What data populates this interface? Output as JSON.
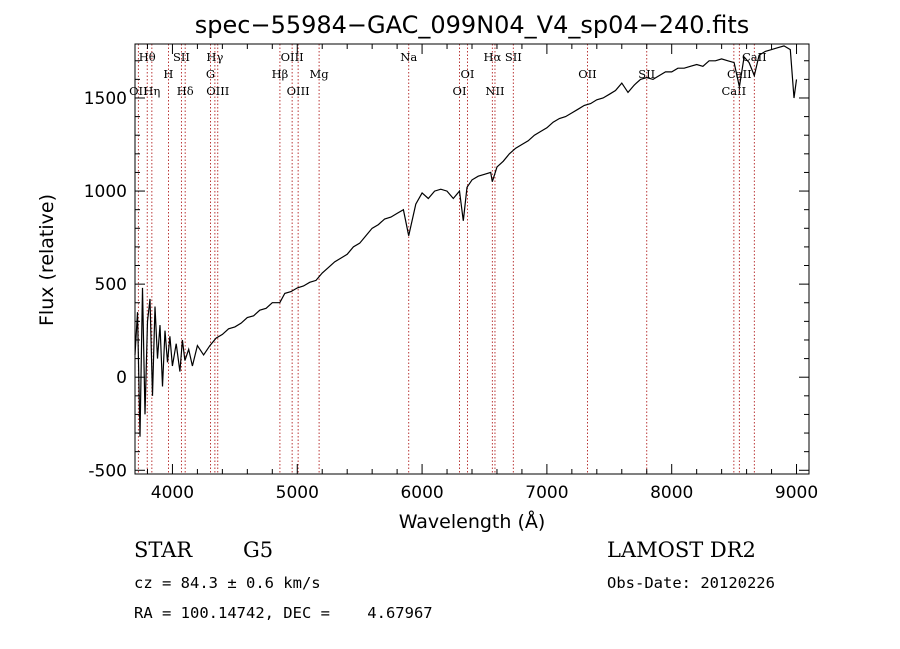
{
  "chart_data": {
    "type": "line",
    "title": "spec−55984−GAC_099N04_V4_sp04−240.fits",
    "xlabel": "Wavelength (Å)",
    "ylabel": "Flux (relative)",
    "xlim": [
      3700,
      9100
    ],
    "ylim": [
      -520,
      1790
    ],
    "xticks": [
      4000,
      5000,
      6000,
      7000,
      8000,
      9000
    ],
    "yticks": [
      -500,
      0,
      500,
      1000,
      1500
    ],
    "grid": false,
    "series": [
      {
        "values_x": [
          3700,
          3720,
          3740,
          3760,
          3780,
          3800,
          3820,
          3840,
          3860,
          3880,
          3900,
          3920,
          3940,
          3960,
          3980,
          4000,
          4030,
          4060,
          4080,
          4100,
          4130,
          4160,
          4200,
          4250,
          4300,
          4350,
          4400,
          4450,
          4500,
          4550,
          4600,
          4650,
          4700,
          4750,
          4800,
          4860,
          4900,
          4950,
          5000,
          5050,
          5100,
          5150,
          5200,
          5250,
          5300,
          5350,
          5400,
          5450,
          5500,
          5550,
          5600,
          5650,
          5700,
          5750,
          5800,
          5850,
          5893,
          5950,
          6000,
          6050,
          6100,
          6150,
          6200,
          6250,
          6300,
          6330,
          6360,
          6400,
          6450,
          6500,
          6550,
          6563,
          6600,
          6650,
          6700,
          6750,
          6800,
          6850,
          6900,
          6950,
          7000,
          7050,
          7100,
          7150,
          7200,
          7250,
          7300,
          7350,
          7400,
          7450,
          7500,
          7550,
          7600,
          7650,
          7700,
          7750,
          7800,
          7850,
          7900,
          7950,
          8000,
          8050,
          8100,
          8150,
          8200,
          8250,
          8300,
          8350,
          8400,
          8450,
          8500,
          8542,
          8580,
          8620,
          8662,
          8700,
          8750,
          8800,
          8850,
          8900,
          8950,
          8980,
          9000
        ],
        "values_y": [
          120,
          350,
          -320,
          480,
          -200,
          300,
          420,
          -100,
          380,
          100,
          280,
          -50,
          250,
          80,
          220,
          60,
          180,
          30,
          200,
          90,
          150,
          60,
          170,
          120,
          170,
          210,
          230,
          260,
          270,
          290,
          320,
          330,
          360,
          370,
          400,
          400,
          450,
          460,
          480,
          490,
          510,
          520,
          560,
          590,
          620,
          640,
          660,
          700,
          720,
          760,
          800,
          820,
          850,
          860,
          880,
          900,
          760,
          930,
          990,
          960,
          1000,
          1010,
          1000,
          960,
          1000,
          840,
          1020,
          1060,
          1080,
          1090,
          1100,
          1050,
          1130,
          1160,
          1200,
          1230,
          1250,
          1270,
          1300,
          1320,
          1340,
          1370,
          1390,
          1400,
          1420,
          1440,
          1460,
          1470,
          1490,
          1500,
          1520,
          1540,
          1580,
          1530,
          1570,
          1600,
          1610,
          1600,
          1620,
          1640,
          1640,
          1660,
          1660,
          1670,
          1680,
          1670,
          1700,
          1700,
          1710,
          1700,
          1690,
          1560,
          1720,
          1690,
          1620,
          1730,
          1750,
          1760,
          1770,
          1780,
          1760,
          1500,
          1600
        ]
      }
    ],
    "lines": [
      {
        "label": "Hθ",
        "wave": 3798,
        "row": 0
      },
      {
        "label": "OII",
        "wave": 3727,
        "row": 2
      },
      {
        "label": "Hη",
        "wave": 3835,
        "row": 2
      },
      {
        "label": "H",
        "wave": 3968,
        "row": 1
      },
      {
        "label": "SII",
        "wave": 4072,
        "row": 0
      },
      {
        "label": "Hδ",
        "wave": 4102,
        "row": 2
      },
      {
        "label": "Hγ",
        "wave": 4340,
        "row": 0
      },
      {
        "label": "G",
        "wave": 4305,
        "row": 1
      },
      {
        "label": "OIII",
        "wave": 4363,
        "row": 2
      },
      {
        "label": "Hβ",
        "wave": 4861,
        "row": 1
      },
      {
        "label": "OIII",
        "wave": 4959,
        "row": 0
      },
      {
        "label": "OIII",
        "wave": 5007,
        "row": 2
      },
      {
        "label": "Mg",
        "wave": 5175,
        "row": 1
      },
      {
        "label": "Na",
        "wave": 5893,
        "row": 0
      },
      {
        "label": "OI",
        "wave": 6300,
        "row": 2
      },
      {
        "label": "OI",
        "wave": 6364,
        "row": 1
      },
      {
        "label": "Hα",
        "wave": 6563,
        "row": 0
      },
      {
        "label": "NII",
        "wave": 6584,
        "row": 2
      },
      {
        "label": "SII",
        "wave": 6731,
        "row": 0
      },
      {
        "label": "OII",
        "wave": 7325,
        "row": 1
      },
      {
        "label": "SII",
        "wave": 7800,
        "row": 1
      },
      {
        "label": "CaII",
        "wave": 8498,
        "row": 2
      },
      {
        "label": "CaII",
        "wave": 8542,
        "row": 1
      },
      {
        "label": "CaII",
        "wave": 8662,
        "row": 0
      }
    ]
  },
  "info": {
    "class": "STAR",
    "subclass": "G5",
    "survey": "LAMOST DR2",
    "redshift": "cz = 84.3 ± 0.6 km/s",
    "obs_date": "Obs-Date: 20120226",
    "coords": "RA = 100.14742, DEC =    4.67967"
  }
}
